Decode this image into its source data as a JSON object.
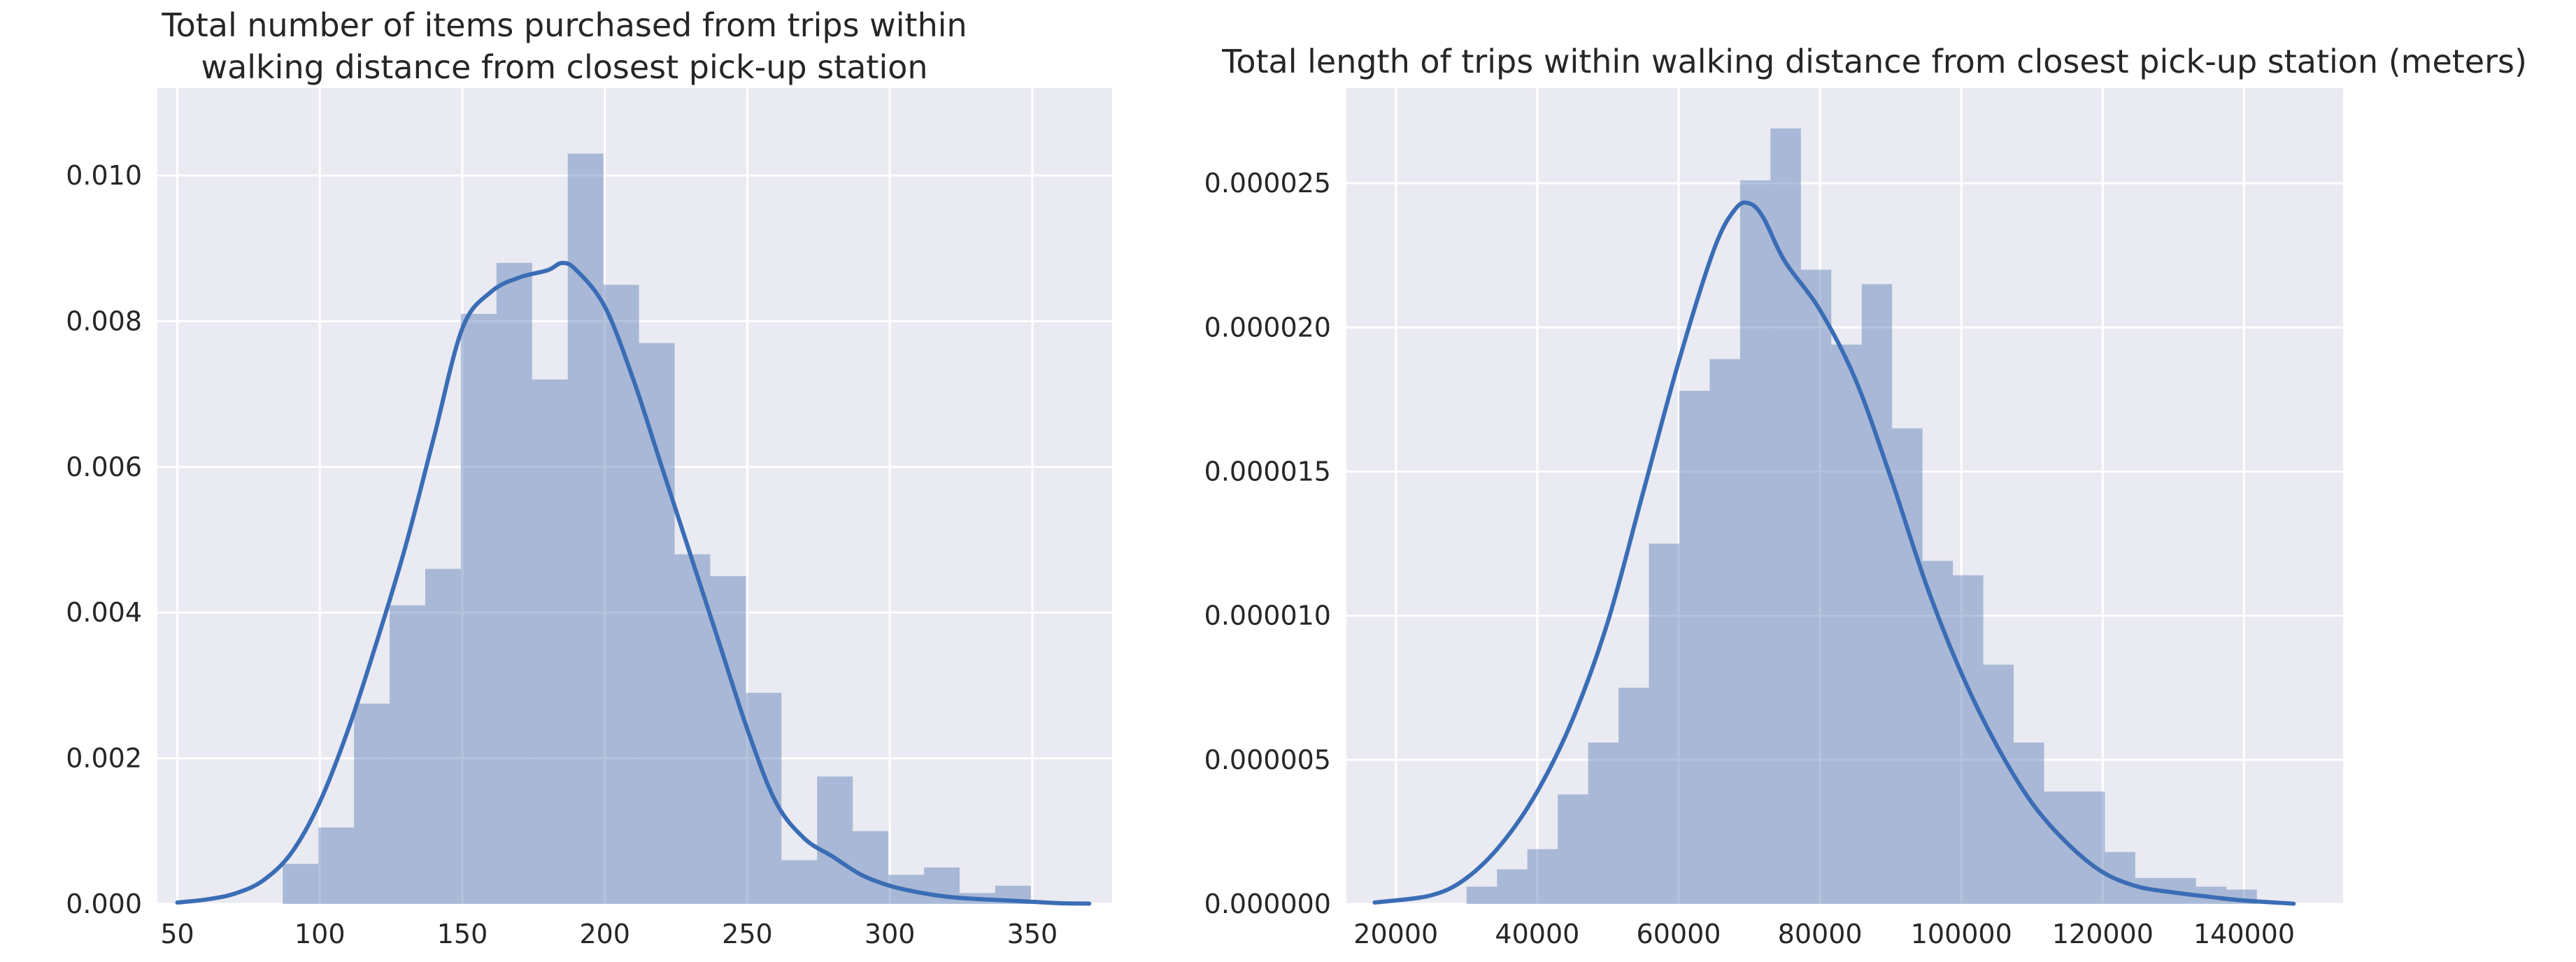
{
  "chart_data": [
    {
      "type": "bar",
      "subtype": "histogram-with-kde",
      "title": [
        "Total number of items purchased from trips within",
        "walking distance from closest pick-up station"
      ],
      "xlabel": "",
      "ylabel": "",
      "xlim": [
        43,
        378
      ],
      "ylim": [
        0,
        0.0112
      ],
      "x_ticks": [
        50,
        100,
        150,
        200,
        250,
        300,
        350
      ],
      "x_tick_labels": [
        "50",
        "100",
        "150",
        "200",
        "250",
        "300",
        "350"
      ],
      "y_ticks": [
        0,
        0.002,
        0.004,
        0.006,
        0.008,
        0.01
      ],
      "y_tick_labels": [
        "0.000",
        "0.002",
        "0.004",
        "0.006",
        "0.008",
        "0.010"
      ],
      "grid": true,
      "bar_color": "#4c72b0",
      "line_color": "#3a6db5",
      "bins": {
        "x_start": 87,
        "bin_width": 12.5,
        "values": [
          0.00055,
          0.00105,
          0.00275,
          0.0041,
          0.0046,
          0.0081,
          0.0088,
          0.0072,
          0.0103,
          0.0085,
          0.0077,
          0.0048,
          0.0045,
          0.0029,
          0.0006,
          0.00175,
          0.001,
          0.0004,
          0.0005,
          0.00015,
          0.00025
        ]
      },
      "kde": {
        "x": [
          50,
          60,
          70,
          80,
          90,
          100,
          110,
          120,
          130,
          140,
          150,
          160,
          170,
          180,
          185,
          190,
          200,
          210,
          220,
          230,
          240,
          250,
          260,
          270,
          280,
          290,
          300,
          310,
          320,
          330,
          340,
          350,
          360,
          370
        ],
        "y": [
          2e-05,
          6e-05,
          0.00014,
          0.00032,
          0.0007,
          0.0014,
          0.0024,
          0.0036,
          0.0049,
          0.0064,
          0.0079,
          0.0084,
          0.0086,
          0.0087,
          0.0088,
          0.0087,
          0.0082,
          0.0072,
          0.006,
          0.0048,
          0.0036,
          0.0024,
          0.0014,
          0.0009,
          0.00065,
          0.0004,
          0.00025,
          0.00016,
          0.0001,
          7e-05,
          5e-05,
          3e-05,
          1e-05,
          5e-06
        ]
      }
    },
    {
      "type": "bar",
      "subtype": "histogram-with-kde",
      "title": [
        "Total length of trips within walking distance from closest pick-up station (meters)"
      ],
      "xlabel": "",
      "ylabel": "",
      "xlim": [
        13000,
        154000
      ],
      "ylim": [
        0,
        2.83e-05
      ],
      "x_ticks": [
        20000,
        40000,
        60000,
        80000,
        100000,
        120000,
        140000
      ],
      "x_tick_labels": [
        "20000",
        "40000",
        "60000",
        "80000",
        "100000",
        "120000",
        "140000"
      ],
      "y_ticks": [
        0,
        5e-06,
        1e-05,
        1.5e-05,
        2e-05,
        2.5e-05
      ],
      "y_tick_labels": [
        "0.000000",
        "0.000005",
        "0.000010",
        "0.000015",
        "0.000020",
        "0.000025"
      ],
      "grid": true,
      "bar_color": "#4c72b0",
      "line_color": "#3a6db5",
      "bins": {
        "x_start": 30000,
        "bin_width": 4300,
        "values": [
          6e-07,
          1.2e-06,
          1.9e-06,
          3.8e-06,
          5.6e-06,
          7.5e-06,
          1.25e-05,
          1.78e-05,
          1.89e-05,
          2.51e-05,
          2.69e-05,
          2.2e-05,
          1.94e-05,
          2.15e-05,
          1.65e-05,
          1.19e-05,
          1.14e-05,
          8.3e-06,
          5.6e-06,
          3.9e-06,
          3.9e-06,
          1.8e-06,
          9e-07,
          9e-07,
          6e-07,
          5e-07
        ]
      },
      "kde": {
        "x": [
          17000,
          25000,
          30000,
          35000,
          40000,
          45000,
          50000,
          55000,
          60000,
          65000,
          68000,
          70000,
          72000,
          75000,
          80000,
          85000,
          90000,
          95000,
          100000,
          105000,
          110000,
          115000,
          120000,
          125000,
          130000,
          135000,
          140000,
          147000
        ],
        "y": [
          5e-08,
          3e-07,
          9e-07,
          2.1e-06,
          3.9e-06,
          6.4e-06,
          9.8e-06,
          1.43e-05,
          1.88e-05,
          2.27e-05,
          2.41e-05,
          2.43e-05,
          2.38e-05,
          2.23e-05,
          2.06e-05,
          1.82e-05,
          1.48e-05,
          1.11e-05,
          8e-06,
          5.5e-06,
          3.5e-06,
          2.1e-06,
          1.1e-06,
          6e-07,
          4e-07,
          2.5e-07,
          1.2e-07,
          1e-08
        ]
      }
    }
  ]
}
